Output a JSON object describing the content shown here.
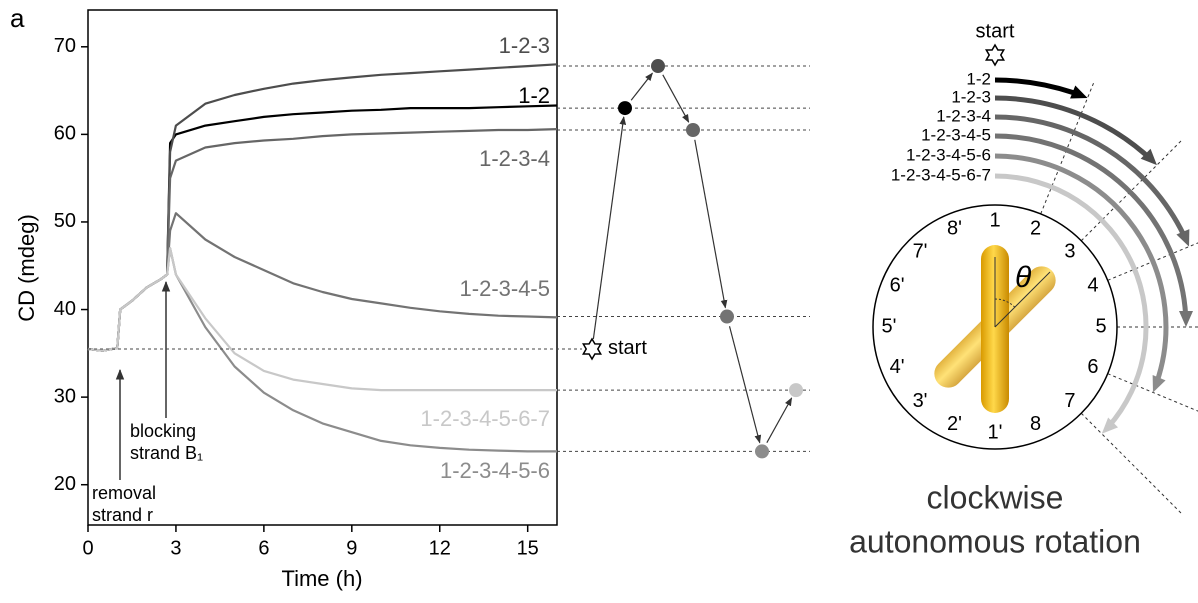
{
  "panel_label": "a",
  "chart_data": [
    {
      "type": "line",
      "xlabel": "Time (h)",
      "ylabel": "CD (mdeg)",
      "xlim": [
        0,
        16
      ],
      "ylim": [
        15.4,
        74.2
      ],
      "xticks": [
        0,
        3,
        6,
        9,
        12,
        15
      ],
      "yticks": [
        20,
        30,
        40,
        50,
        60,
        70
      ],
      "x": [
        0,
        0.5,
        1,
        1.1,
        1.5,
        2,
        2.5,
        2.7,
        2.8,
        3,
        4,
        5,
        6,
        7,
        8,
        9,
        10,
        11,
        12,
        13,
        14,
        15,
        16
      ],
      "series": [
        {
          "name": "1-2",
          "color": "#000000",
          "values": [
            35.5,
            35.3,
            35.6,
            40,
            41,
            42.5,
            43.5,
            44,
            59,
            60,
            61,
            61.5,
            62,
            62.3,
            62.5,
            62.7,
            62.8,
            63,
            63,
            63,
            63.1,
            63.2,
            63.3
          ]
        },
        {
          "name": "1-2-3",
          "color": "#4d4d4d",
          "values": [
            35.5,
            35.3,
            35.6,
            40,
            41,
            42.5,
            43.5,
            44,
            58,
            61,
            63.5,
            64.5,
            65.2,
            65.8,
            66.2,
            66.5,
            66.8,
            67,
            67.2,
            67.4,
            67.6,
            67.8,
            68
          ]
        },
        {
          "name": "1-2-3-4",
          "color": "#666666",
          "values": [
            35.5,
            35.3,
            35.6,
            40,
            41,
            42.5,
            43.5,
            44,
            55,
            57,
            58.5,
            59,
            59.3,
            59.5,
            59.8,
            60,
            60.1,
            60.2,
            60.3,
            60.4,
            60.5,
            60.5,
            60.6
          ]
        },
        {
          "name": "1-2-3-4-5",
          "color": "#737373",
          "values": [
            35.5,
            35.3,
            35.6,
            40,
            41,
            42.5,
            43.5,
            44,
            49,
            51,
            48,
            46,
            44.5,
            43,
            42,
            41.2,
            40.7,
            40.2,
            39.8,
            39.5,
            39.3,
            39.2,
            39.1
          ]
        },
        {
          "name": "1-2-3-4-5-6",
          "color": "#8c8c8c",
          "values": [
            35.5,
            35.3,
            35.6,
            40,
            41,
            42.5,
            43.5,
            44,
            47,
            44,
            38,
            33.5,
            30.5,
            28.5,
            27,
            26,
            25,
            24.5,
            24.2,
            24,
            23.9,
            23.8,
            23.8
          ]
        },
        {
          "name": "1-2-3-4-5-6-7",
          "color": "#c8c8c8",
          "values": [
            35.5,
            35.3,
            35.6,
            40,
            41,
            42.5,
            43.5,
            44,
            47,
            44,
            39,
            35,
            33,
            32,
            31.5,
            31,
            30.8,
            30.8,
            30.8,
            30.8,
            30.8,
            30.8,
            30.8
          ]
        }
      ],
      "annotations": [
        [
          "removal",
          "strand r"
        ],
        [
          "blocking",
          "strand B₁"
        ]
      ]
    },
    {
      "type": "scatter",
      "start_label": "start",
      "start_value": 35.5,
      "values": [
        63,
        67.8,
        60.5,
        39.2,
        23.8,
        30.8
      ],
      "colors": [
        "#000000",
        "#4d4d4d",
        "#666666",
        "#737373",
        "#8c8c8c",
        "#c8c8c8"
      ]
    }
  ],
  "diagram": {
    "start_label": "start",
    "clock_numbers": [
      "1",
      "2",
      "3",
      "4",
      "5",
      "6",
      "7",
      "8",
      "1'",
      "2'",
      "3'",
      "4'",
      "5'",
      "6'",
      "7'",
      "8'"
    ],
    "angle_symbol": "θ",
    "caption": [
      "clockwise",
      "autonomous rotation"
    ]
  }
}
